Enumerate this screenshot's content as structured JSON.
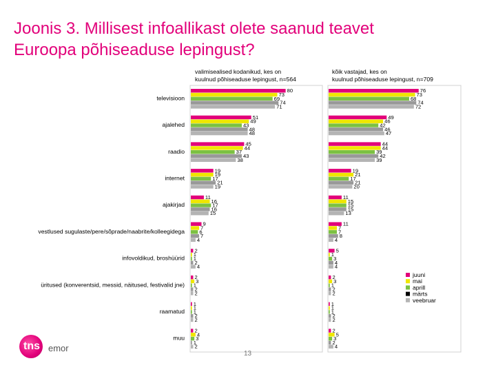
{
  "title_lines": [
    "Joonis 3. Millisest infoallikast olete saanud teavet",
    "Euroopa põhiseaduse lepingust?"
  ],
  "page_number": "13",
  "logo": {
    "mark_text": "tns",
    "name": "emor"
  },
  "colors": {
    "juuni": "#e2007a",
    "mai": "#f0e600",
    "aprill": "#7cc142",
    "marts": "#6b6fa3",
    "veebruar": "#b4b4b4",
    "title": "#e2007a"
  },
  "chart_data": {
    "type": "bar",
    "orientation": "horizontal",
    "categories": [
      "televisioon",
      "ajalehed",
      "raadio",
      "internet",
      "ajakirjad",
      "vestlused sugulaste/pere/sõprade/naabrite/kolleegidega",
      "infovoldikud, broshüürid",
      "üritused (konverentsid, messid, näitused, festivalid jne)",
      "raamatud",
      "muu"
    ],
    "legend": [
      "juuni",
      "mai",
      "aprill",
      "märts",
      "veebruar"
    ],
    "legend_position": "bottom-right",
    "panels": [
      {
        "title": "valimisealised kodanikud, kes on kuulnud põhiseaduse lepingust, n=564",
        "series": [
          {
            "name": "juuni",
            "values": [
              80,
              51,
              45,
              19,
              11,
              9,
              2,
              2,
              1,
              2
            ]
          },
          {
            "name": "mai",
            "values": [
              73,
              49,
              44,
              19,
              16,
              7,
              1,
              3,
              1,
              4
            ]
          },
          {
            "name": "aprill",
            "values": [
              69,
              43,
              37,
              17,
              17,
              6,
              1,
              1,
              1,
              3
            ]
          },
          {
            "name": "märts",
            "values": [
              74,
              48,
              43,
              21,
              16,
              7,
              2,
              2,
              2,
              1
            ]
          },
          {
            "name": "veebruar",
            "values": [
              71,
              48,
              38,
              19,
              15,
              4,
              4,
              2,
              2,
              2
            ]
          }
        ]
      },
      {
        "title": "kõik vastajad, kes on kuulnud põhiseaduse lepingust, n=709",
        "series": [
          {
            "name": "juuni",
            "values": [
              76,
              49,
              44,
              19,
              11,
              11,
              5,
              2,
              1,
              2
            ]
          },
          {
            "name": "mai",
            "values": [
              73,
              46,
              44,
              21,
              15,
              7,
              1,
              3,
              1,
              5
            ]
          },
          {
            "name": "aprill",
            "values": [
              68,
              42,
              39,
              17,
              15,
              7,
              3,
              1,
              1,
              3
            ]
          },
          {
            "name": "märts",
            "values": [
              74,
              46,
              42,
              21,
              15,
              8,
              4,
              2,
              2,
              2
            ]
          },
          {
            "name": "veebruar",
            "values": [
              72,
              47,
              39,
              20,
              13,
              4,
              4,
              2,
              2,
              4
            ]
          }
        ]
      }
    ]
  }
}
